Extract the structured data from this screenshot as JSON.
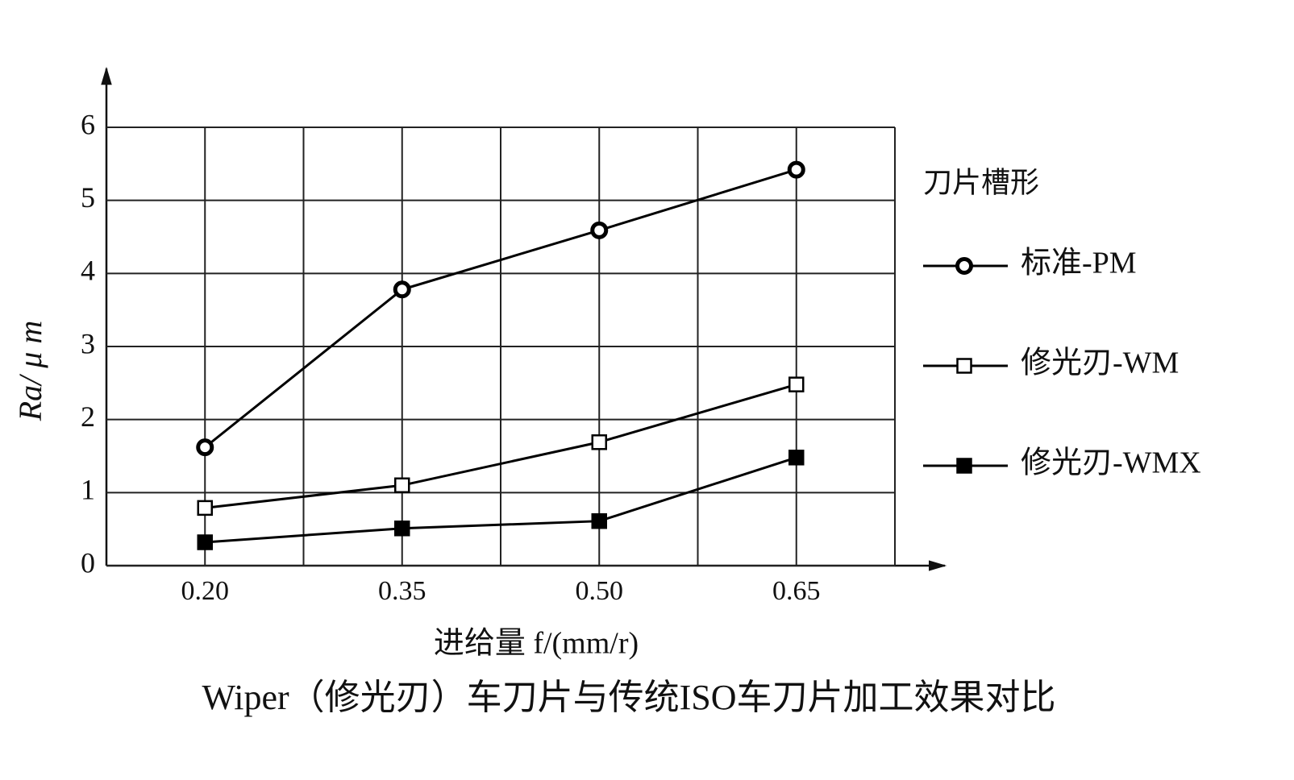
{
  "chart_data": {
    "type": "line",
    "title": "Wiper（修光刃）车刀片与传统ISO车刀片加工效果对比",
    "x_label": "进给量 f/(mm/r)",
    "y_label": "Ra/ μ m",
    "legend_title": "刀片槽形",
    "categories": [
      "0.20",
      "0.35",
      "0.50",
      "0.65"
    ],
    "series": [
      {
        "name": "标准-PM",
        "color": "#000000",
        "marker": "circle-open",
        "values": [
          1.62,
          3.78,
          4.59,
          5.42
        ]
      },
      {
        "name": "修光刃-WM",
        "color": "#000000",
        "marker": "square-open",
        "values": [
          0.79,
          1.1,
          1.69,
          2.48
        ]
      },
      {
        "name": "修光刃-WMX",
        "color": "#000000",
        "marker": "square-filled",
        "values": [
          0.32,
          0.51,
          0.61,
          1.48
        ]
      }
    ],
    "ylim": [
      0,
      6
    ],
    "yticks": [
      0,
      1,
      2,
      3,
      4,
      5,
      6
    ],
    "grid": true,
    "legend": "right"
  }
}
